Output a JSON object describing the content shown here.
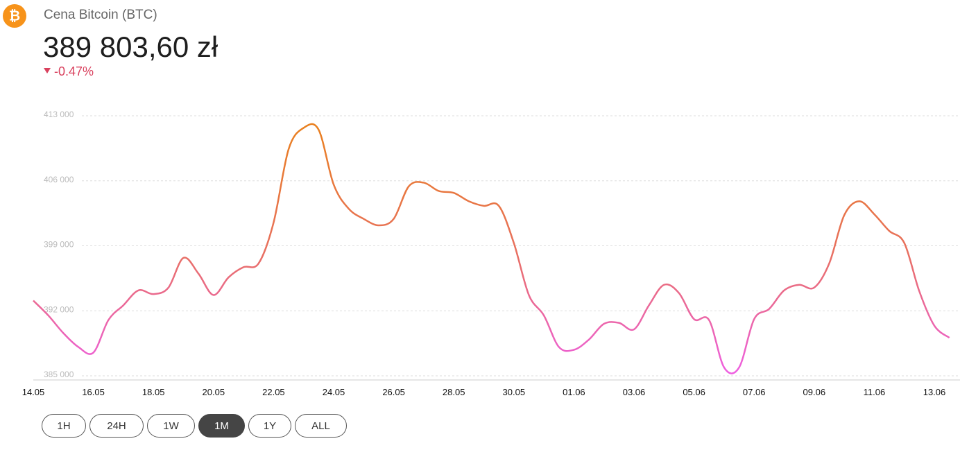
{
  "header": {
    "icon_symbol": "₿",
    "title": "Cena Bitcoin (BTC)",
    "price": "389 803,60 zł",
    "change": "-0.47%"
  },
  "chart_data": {
    "type": "line",
    "categories": [
      "14.05",
      null,
      null,
      null,
      "16.05",
      null,
      null,
      null,
      "18.05",
      null,
      null,
      null,
      "20.05",
      null,
      null,
      null,
      "22.05",
      null,
      null,
      null,
      "24.05",
      null,
      null,
      null,
      "26.05",
      null,
      null,
      null,
      "28.05",
      null,
      null,
      null,
      "30.05",
      null,
      null,
      null,
      "01.06",
      null,
      null,
      null,
      "03.06",
      null,
      null,
      null,
      "05.06",
      null,
      null,
      null,
      "07.06",
      null,
      null,
      null,
      "09.06",
      null,
      null,
      null,
      "11.06",
      null,
      null,
      null,
      "13.06",
      null
    ],
    "series": [
      {
        "name": "BTC",
        "color_gradient": [
          "#ee5fe2",
          "#e8705e",
          "#e9801f"
        ],
        "values": [
          393100,
          391500,
          389600,
          388100,
          387500,
          391000,
          392600,
          394200,
          393800,
          394500,
          397700,
          396000,
          393700,
          395600,
          396700,
          397100,
          401500,
          409400,
          411700,
          411500,
          405600,
          403000,
          401900,
          401200,
          401900,
          405400,
          405800,
          404900,
          404700,
          403800,
          403300,
          403300,
          399300,
          393700,
          391500,
          388100,
          387800,
          388900,
          390600,
          390700,
          390000,
          392600,
          394800,
          393900,
          391100,
          391000,
          385900,
          385900,
          391100,
          392200,
          394200,
          394800,
          394500,
          397100,
          402300,
          403800,
          402400,
          400600,
          399300,
          394100,
          390400,
          389100
        ]
      }
    ],
    "ylim": [
      385000,
      413000
    ],
    "yticks": [
      {
        "value": 385000,
        "label": "385 000"
      },
      {
        "value": 392000,
        "label": "392 000"
      },
      {
        "value": 399000,
        "label": "399 000"
      },
      {
        "value": 406000,
        "label": "406 000"
      },
      {
        "value": 413000,
        "label": "413 000"
      }
    ],
    "grid": true
  },
  "range_buttons": [
    "1H",
    "24H",
    "1W",
    "1M",
    "1Y",
    "ALL"
  ],
  "active_range": "1M"
}
